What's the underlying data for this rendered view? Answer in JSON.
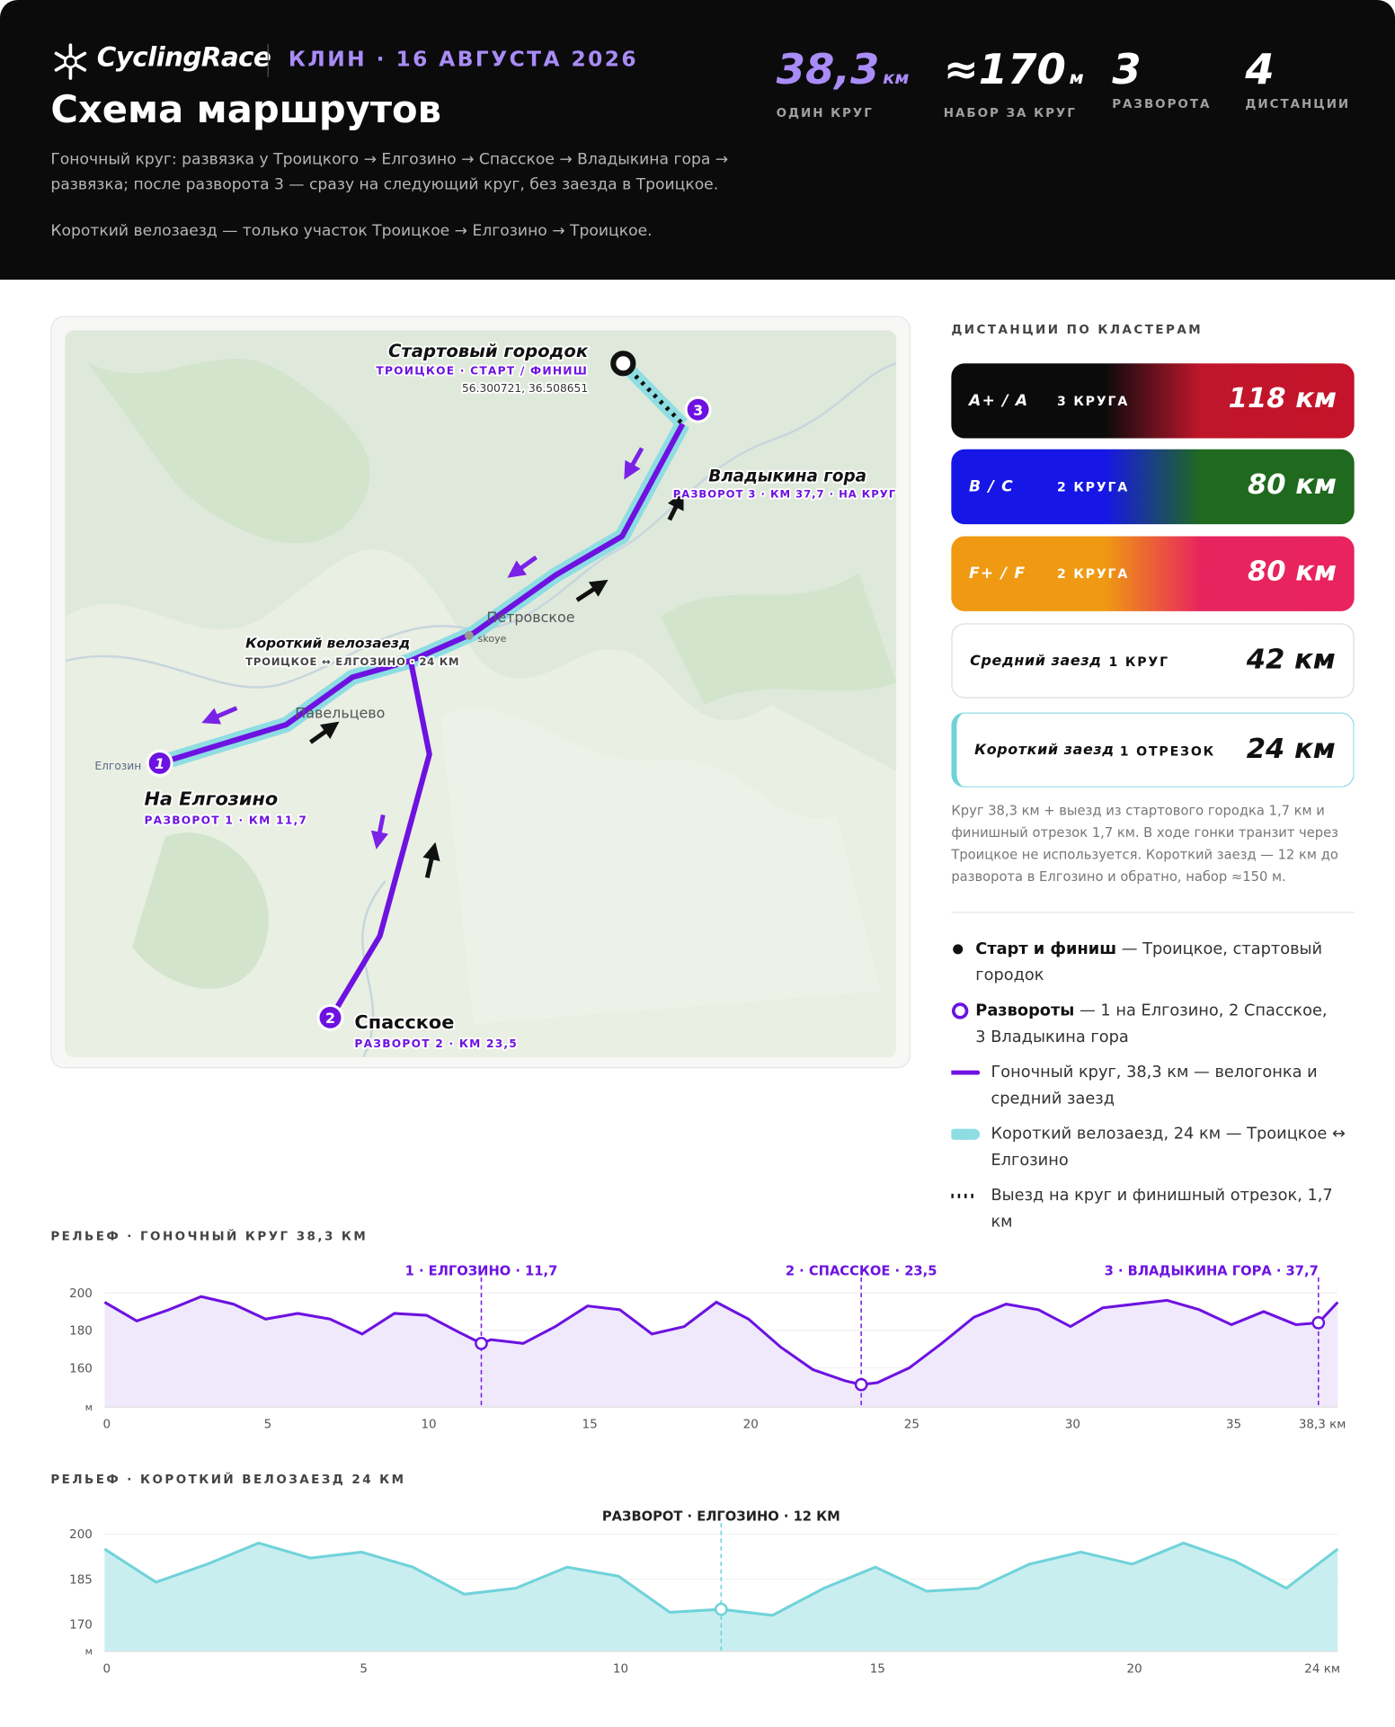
{
  "header": {
    "brand": "CyclingRace",
    "event": "КЛИН · 16 АВГУСТА 2026",
    "title": "Схема маршрутов",
    "description": "Гоночный круг: развязка у Троицкого → Елгозино → Спасское → Владыкина гора → развязка; после разворота 3 — сразу на следующий круг, без заезда в Троицкое.",
    "note": "Короткий велозаезд — только участок Троицкое → Елгозино → Троицкое."
  },
  "stats": [
    {
      "value": "38,3",
      "unit": "км",
      "label": "ОДИН КРУГ"
    },
    {
      "value": "≈170",
      "unit": "м",
      "label": "НАБОР ЗА КРУГ"
    },
    {
      "value": "3",
      "label": "РАЗВОРОТА"
    },
    {
      "value": "4",
      "label": "ДИСТАНЦИИ"
    }
  ],
  "map": {
    "start": {
      "title": "Стартовый городок",
      "subtitle": "ТРОИЦКОЕ · СТАРТ / ФИНИШ",
      "coords": "56.300721, 36.508651"
    },
    "turnarounds": [
      {
        "number": "1",
        "title": "На Елгозино",
        "subtitle": "РАЗВОРОТ 1 · КМ 11,7",
        "place": "Елгозин"
      },
      {
        "number": "2",
        "title": "Спасское",
        "subtitle": "РАЗВОРОТ 2 · КМ 23,5"
      },
      {
        "number": "3",
        "title": "Владыкина гора",
        "subtitle": "РАЗВОРОТ 3 · КМ 37,7 · НА КРУГ"
      }
    ],
    "short": {
      "title": "Короткий велозаезд",
      "subtitle": "ТРОИЦКОЕ ↔ ЕЛГОЗИНО · 24 КМ"
    },
    "places": [
      "Петровское",
      "skoye",
      "Павельцево"
    ]
  },
  "clusters": {
    "title": "ДИСТАНЦИИ ПО КЛАСТЕРАМ",
    "items": [
      {
        "name": "A+ / A",
        "laps": "3 КРУГА",
        "distance": "118 км"
      },
      {
        "name": "B / C",
        "laps": "2 КРУГА",
        "distance": "80 км"
      },
      {
        "name": "F+ / F",
        "laps": "2 КРУГА",
        "distance": "80 км"
      },
      {
        "name": "Средний заезд",
        "laps": "1 КРУГ",
        "distance": "42 км"
      },
      {
        "name": "Короткий заезд",
        "laps": "1 ОТРЕЗОК",
        "distance": "24 км"
      }
    ],
    "note": "Круг 38,3 км + выезд из стартового городка 1,7 км и финишный отрезок 1,7 км. В ходе гонки транзит через Троицкое не используется. Короткий заезд — 12 км до разворота в Елгозино и обратно, набор ≈150 м."
  },
  "legend": [
    {
      "label": "Старт и финиш",
      "text": "— Троицкое, стартовый городок"
    },
    {
      "label": "Развороты",
      "text": "— 1 на Елгозино, 2 Спасское, 3 Владыкина гора"
    },
    {
      "text": "Гоночный круг, 38,3 км — велогонка и средний заезд"
    },
    {
      "text": "Короткий велозаезд, 24 км — Троицкое ↔ Елгозино"
    },
    {
      "text": "Выезд на круг и финишный отрезок, 1,7 км"
    }
  ],
  "chart_data": [
    {
      "type": "area",
      "title": "РЕЛЬЕФ · ГОНОЧНЫЙ КРУГ 38,3 КМ",
      "x": [
        0,
        1,
        2,
        3,
        4,
        5,
        6,
        7,
        8,
        9,
        10,
        11,
        11.7,
        12,
        13,
        14,
        15,
        16,
        17,
        18,
        19,
        20,
        21,
        22,
        23,
        23.5,
        24,
        25,
        26,
        27,
        28,
        29,
        30,
        31,
        32,
        33,
        34,
        35,
        36,
        37,
        37.7,
        38.3
      ],
      "series": [
        {
          "color": "#6d12e0",
          "values": [
            195,
            185,
            191,
            198,
            194,
            186,
            189,
            186,
            178,
            189,
            188,
            179,
            173,
            175,
            173,
            182,
            193,
            191,
            178,
            182,
            195,
            186,
            171,
            159,
            153,
            151,
            152,
            160,
            173,
            187,
            194,
            191,
            182,
            192,
            194,
            196,
            191,
            183,
            190,
            183,
            184,
            195
          ]
        }
      ],
      "xlim": [
        0,
        38.3
      ],
      "xticks": [
        0,
        5,
        10,
        15,
        20,
        25,
        30,
        35,
        {
          "value": 38.3,
          "label": "38,3 км"
        }
      ],
      "ylim": [
        139,
        205
      ],
      "yticks": [
        160,
        180,
        200
      ],
      "y_label": "м",
      "annotations": [
        {
          "x": 11.7,
          "label": "1 · ЕЛГОЗИНО · 11,7"
        },
        {
          "x": 23.5,
          "label": "2 · СПАССКОЕ · 23,5"
        },
        {
          "x": 37.7,
          "label": "3 · ВЛАДЫКИНА ГОРА · 37,7"
        }
      ]
    },
    {
      "type": "area",
      "title": "РЕЛЬЕФ · КОРОТКИЙ ВЕЛОЗАЕЗД 24 КМ",
      "x": [
        0,
        1,
        2,
        3,
        4,
        5,
        6,
        7,
        8,
        9,
        10,
        11,
        12,
        13,
        14,
        15,
        16,
        17,
        18,
        19,
        20,
        21,
        22,
        23,
        24
      ],
      "series": [
        {
          "color": "#6fd3d9",
          "values": [
            195,
            184,
            190,
            197,
            192,
            194,
            189,
            180,
            182,
            189,
            186,
            174,
            175,
            173,
            182,
            189,
            181,
            182,
            190,
            194,
            190,
            197,
            191,
            182,
            195
          ]
        }
      ],
      "xlim": [
        0,
        24
      ],
      "xticks": [
        0,
        5,
        10,
        15,
        20,
        {
          "value": 24,
          "label": "24 км"
        }
      ],
      "ylim": [
        161,
        203
      ],
      "yticks": [
        170,
        185,
        200
      ],
      "y_label": "м",
      "annotations": [
        {
          "x": 12,
          "label": "РАЗВОРОТ · ЕЛГОЗИНО · 12 КМ"
        }
      ]
    }
  ]
}
